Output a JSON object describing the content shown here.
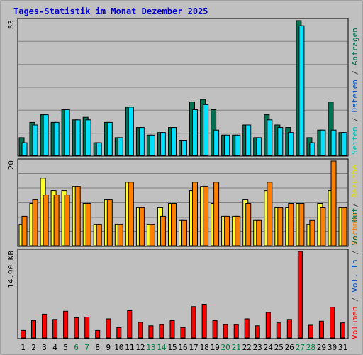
{
  "title": "Tages-Statistik im Monat Dezember 2025",
  "colors": {
    "background": "#c0c0c0",
    "panel_border": "#000000",
    "grid": "#808080",
    "title": "#0000cc",
    "weekday_label": "#000000",
    "weekend_label": "#008040",
    "anfragen": "#007050",
    "dateien": "#00e0ff",
    "seiten": "#00d0e8",
    "besuche": "#ffff30",
    "rechner": "#ff8000",
    "volumen": "#ff0000",
    "bar_outline": "#000000"
  },
  "legend_right": {
    "top": [
      {
        "text": "Seiten",
        "color": "#00c0c0"
      },
      {
        "text": " / ",
        "color": "#404040"
      },
      {
        "text": "Dateien",
        "color": "#0050c0"
      },
      {
        "text": " / ",
        "color": "#404040"
      },
      {
        "text": "Anfragen",
        "color": "#007050"
      }
    ],
    "middle": [
      {
        "text": "Rechner",
        "color": "#ff8000"
      },
      {
        "text": " / ",
        "color": "#404040"
      },
      {
        "text": "Besuche",
        "color": "#e0e000"
      }
    ],
    "bottom": [
      {
        "text": "Volumen",
        "color": "#ff0000"
      },
      {
        "text": " / ",
        "color": "#404040"
      },
      {
        "text": "Vol. In",
        "color": "#0050c0"
      },
      {
        "text": " / ",
        "color": "#404040"
      },
      {
        "text": "Vol. Out",
        "color": "#007050"
      }
    ]
  },
  "chart_data": [
    {
      "type": "bar",
      "panel": "top",
      "ymax_label": "53",
      "ylim": [
        0,
        53
      ],
      "grid": true,
      "categories": [
        "1",
        "2",
        "3",
        "4",
        "5",
        "6",
        "7",
        "8",
        "9",
        "10",
        "11",
        "12",
        "13",
        "14",
        "15",
        "16",
        "17",
        "18",
        "19",
        "20",
        "21",
        "22",
        "23",
        "24",
        "25",
        "26",
        "27",
        "28",
        "29",
        "30",
        "31"
      ],
      "series": [
        {
          "name": "Anfragen",
          "values": [
            7,
            13,
            16,
            13,
            18,
            14,
            15,
            5,
            13,
            7,
            19,
            11,
            8,
            9,
            11,
            6,
            21,
            22,
            18,
            8,
            8,
            12,
            7,
            16,
            12,
            11,
            53,
            7,
            10,
            21,
            9
          ]
        },
        {
          "name": "Dateien",
          "values": [
            5,
            12,
            16,
            13,
            18,
            14,
            14,
            5,
            13,
            7,
            19,
            11,
            8,
            9,
            11,
            6,
            18,
            20,
            10,
            8,
            8,
            12,
            7,
            14,
            11,
            9,
            51,
            5,
            10,
            10,
            9
          ]
        }
      ]
    },
    {
      "type": "bar",
      "panel": "middle",
      "ymax_label": "20",
      "ylim": [
        0,
        20
      ],
      "grid": true,
      "categories": [
        "1",
        "2",
        "3",
        "4",
        "5",
        "6",
        "7",
        "8",
        "9",
        "10",
        "11",
        "12",
        "13",
        "14",
        "15",
        "16",
        "17",
        "18",
        "19",
        "20",
        "21",
        "22",
        "23",
        "24",
        "25",
        "26",
        "27",
        "28",
        "29",
        "30",
        "31"
      ],
      "series": [
        {
          "name": "Besuche",
          "values": [
            5,
            10,
            16,
            13,
            13,
            14,
            10,
            5,
            11,
            5,
            15,
            9,
            5,
            9,
            10,
            6,
            13,
            14,
            10,
            7,
            7,
            11,
            6,
            13,
            9,
            9,
            10,
            5,
            10,
            13,
            9
          ]
        },
        {
          "name": "Rechner",
          "values": [
            7,
            11,
            12,
            12,
            12,
            14,
            10,
            5,
            11,
            5,
            15,
            9,
            5,
            7,
            10,
            6,
            15,
            14,
            15,
            7,
            7,
            10,
            6,
            15,
            9,
            10,
            10,
            6,
            9,
            20,
            9
          ]
        }
      ]
    },
    {
      "type": "bar",
      "panel": "bottom",
      "ymax_label": "14.90 KB",
      "ylim": [
        0,
        14.9
      ],
      "grid": false,
      "categories": [
        "1",
        "2",
        "3",
        "4",
        "5",
        "6",
        "7",
        "8",
        "9",
        "10",
        "11",
        "12",
        "13",
        "14",
        "15",
        "16",
        "17",
        "18",
        "19",
        "20",
        "21",
        "22",
        "23",
        "24",
        "25",
        "26",
        "27",
        "28",
        "29",
        "30",
        "31"
      ],
      "series": [
        {
          "name": "Volumen",
          "values": [
            1.3,
            3.0,
            4.1,
            3.2,
            4.6,
            3.5,
            3.6,
            1.3,
            3.3,
            1.8,
            4.7,
            2.7,
            2.1,
            2.3,
            3.0,
            1.8,
            5.4,
            5.8,
            3.0,
            2.3,
            2.3,
            3.3,
            2.1,
            4.4,
            2.6,
            3.2,
            14.9,
            2.2,
            2.9,
            5.3,
            2.6
          ]
        }
      ]
    }
  ]
}
